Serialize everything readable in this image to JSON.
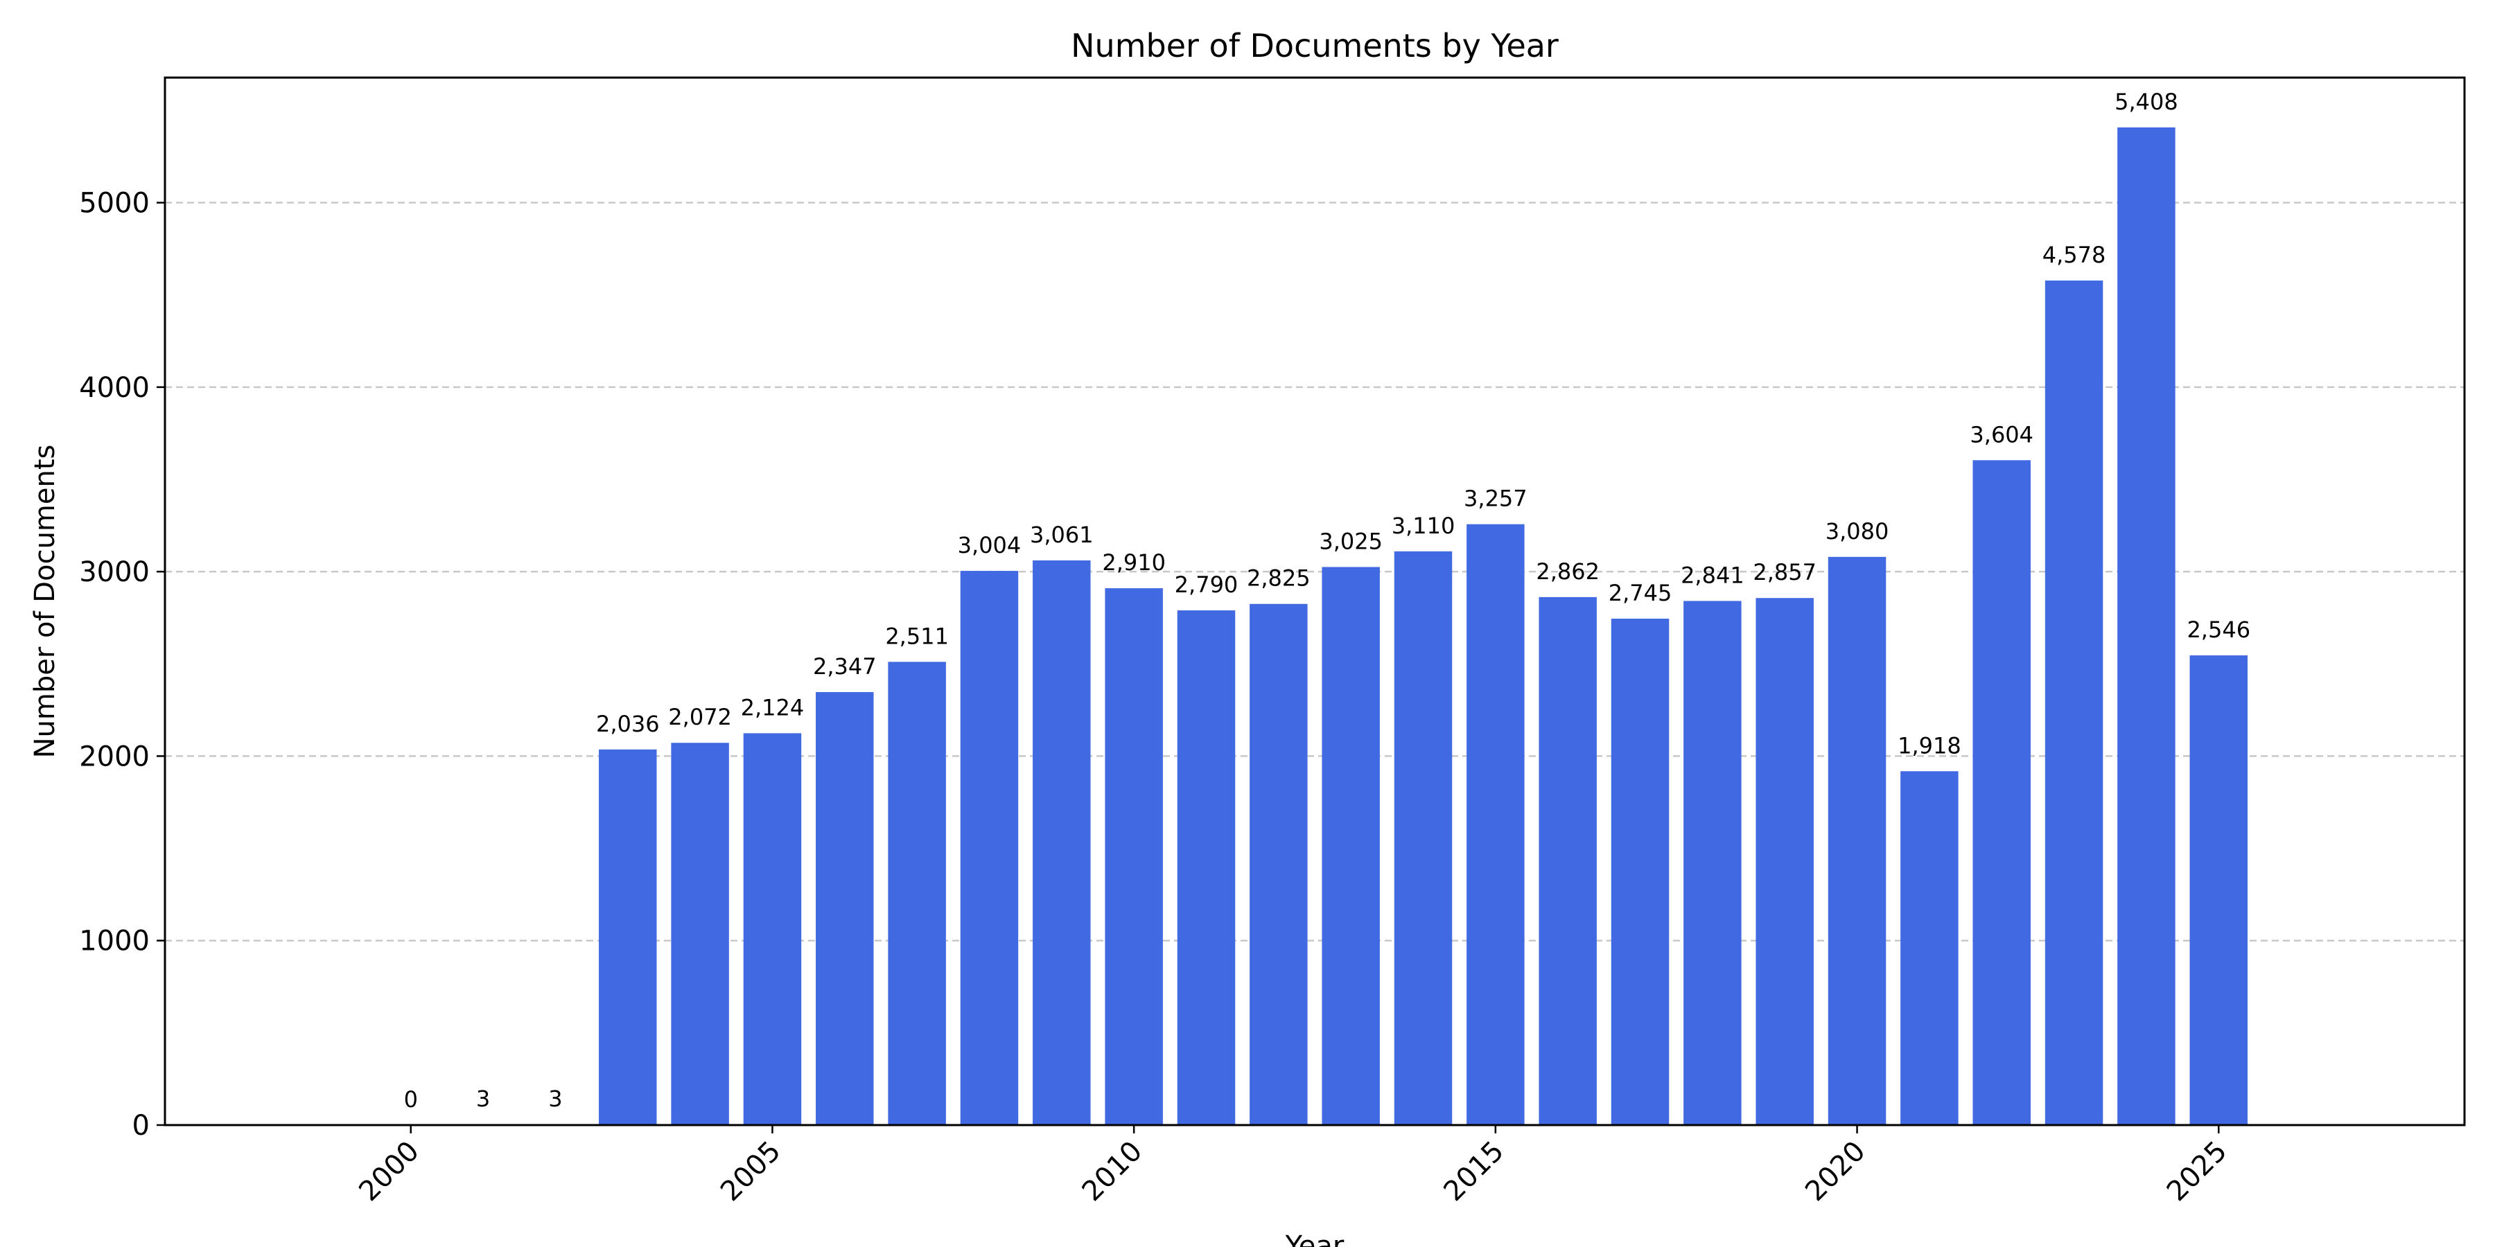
{
  "chart_data": {
    "type": "bar",
    "title": "Number of Documents by Year",
    "xlabel": "Year",
    "ylabel": "Number of Documents",
    "categories": [
      2000,
      2001,
      2002,
      2003,
      2004,
      2005,
      2006,
      2007,
      2008,
      2009,
      2010,
      2011,
      2012,
      2013,
      2014,
      2015,
      2016,
      2017,
      2018,
      2019,
      2020,
      2021,
      2022,
      2023,
      2024,
      2025
    ],
    "values": [
      0,
      3,
      3,
      2036,
      2072,
      2124,
      2347,
      2511,
      3004,
      3061,
      2910,
      2790,
      2825,
      3025,
      3110,
      3257,
      2862,
      2745,
      2841,
      2857,
      3080,
      1918,
      3604,
      4578,
      5408,
      2546
    ],
    "data_labels": [
      "0",
      "3",
      "3",
      "2,036",
      "2,072",
      "2,124",
      "2,347",
      "2,511",
      "3,004",
      "3,061",
      "2,910",
      "2,790",
      "2,825",
      "3,025",
      "3,110",
      "3,257",
      "2,862",
      "2,745",
      "2,841",
      "2,857",
      "3,080",
      "1,918",
      "3,604",
      "4,578",
      "5,408",
      "2,546"
    ],
    "xticks": [
      2000,
      2005,
      2010,
      2015,
      2020,
      2025
    ],
    "yticks": [
      0,
      1000,
      2000,
      3000,
      4000,
      5000
    ],
    "xlim": [
      1996.6,
      2028.4
    ],
    "ylim": [
      0,
      5678
    ],
    "grid": "y-dashed",
    "bar_color": "#4169E1",
    "grid_color": "#c8c8c8"
  }
}
